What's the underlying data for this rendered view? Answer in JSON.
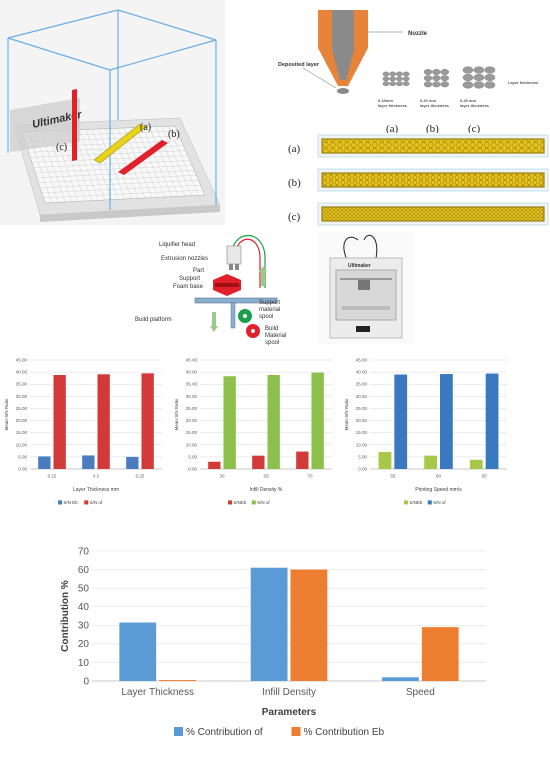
{
  "build_box": {
    "brand": "Ultimaker",
    "labels": {
      "a": "(a)",
      "b": "(b)",
      "c": "(c)"
    },
    "colors": {
      "box": "#6aaee6",
      "bed": "#d9d9d9",
      "part_red": "#e0202a",
      "part_yellow": "#e8d21a"
    }
  },
  "nozzle": {
    "nozzle_label": "Nozzle",
    "deposited_label": "Deposited layer",
    "layer_label": "Layer thickness",
    "thicknesses": [
      {
        "value": "0.15mm",
        "text": "layer thickness",
        "tag": "(a)"
      },
      {
        "value": "0.20 mm",
        "text": "layer thickness",
        "tag": "(b)"
      },
      {
        "value": "0.25 mm",
        "text": "layer thickness",
        "tag": "(c)"
      }
    ],
    "colors": {
      "nozzle": "#e8833a",
      "core": "#7a7a7a",
      "beads": "#9a9a9a"
    }
  },
  "infill_strips": {
    "labels": [
      "(a)",
      "(b)",
      "(c)"
    ],
    "colors": {
      "fill": "#e6c21c",
      "edge": "#9a8010",
      "outline": "#c8dce8"
    }
  },
  "fdm": {
    "labels": {
      "liquifier": "Liquifier head",
      "extrusion": "Extrusion nozzles",
      "part": "Part",
      "support": "Support",
      "foam": "Foam base",
      "platform": "Build platform",
      "support_spool": "Support material spool",
      "build_spool": "Build Material spool"
    },
    "colors": {
      "part": "#e0202a",
      "green_spool": "#1aa04a",
      "red_spool": "#e0202a",
      "platform": "#8ab0d0"
    }
  },
  "printer": {
    "brand": "Ultimaker"
  },
  "chart_data": [
    {
      "type": "bar",
      "categories": [
        "0.15",
        "0.2",
        "0.25"
      ],
      "series": [
        {
          "name": "S/N Eb",
          "color": "#4a7cc0",
          "values": [
            5.2,
            5.6,
            5.0
          ]
        },
        {
          "name": "S/N of",
          "color": "#d23a3a",
          "values": [
            38.8,
            39.1,
            39.5
          ]
        }
      ],
      "ylim": [
        0,
        45
      ],
      "yticks": [
        "0.00",
        "5.00",
        "10.00",
        "15.00",
        "20.00",
        "25.00",
        "30.00",
        "35.00",
        "40.00",
        "45.00"
      ],
      "xlabel": "Layer Thickness mm",
      "ylabel": "Mean S/N Ratio",
      "grid": true,
      "legend": "bottom"
    },
    {
      "type": "bar",
      "categories": [
        "30",
        "50",
        "70"
      ],
      "series": [
        {
          "name": "S/NEb",
          "color": "#d23a3a",
          "values": [
            3.0,
            5.5,
            7.2
          ]
        },
        {
          "name": "S/N of",
          "color": "#8cc04a",
          "values": [
            38.3,
            38.8,
            39.8
          ]
        }
      ],
      "ylim": [
        0,
        45
      ],
      "yticks": [
        "0.00",
        "5.00",
        "10.00",
        "15.00",
        "20.00",
        "25.00",
        "30.00",
        "35.00",
        "40.00",
        "45.00"
      ],
      "xlabel": "Infill Density %",
      "ylabel": "Mean S/N Ratio",
      "grid": true,
      "legend": "bottom"
    },
    {
      "type": "bar",
      "categories": [
        "55",
        "60",
        "65"
      ],
      "series": [
        {
          "name": "S/NEb",
          "color": "#a8c84a",
          "values": [
            7.0,
            5.5,
            3.8
          ]
        },
        {
          "name": "S/N of",
          "color": "#3a78c0",
          "values": [
            39.0,
            39.2,
            39.4
          ]
        }
      ],
      "ylim": [
        0,
        45
      ],
      "yticks": [
        "0.00",
        "5.00",
        "10.00",
        "15.00",
        "20.00",
        "25.00",
        "30.00",
        "35.00",
        "40.00",
        "45.00"
      ],
      "xlabel": "Printing Speed mm/s",
      "ylabel": "Mean S/N Ratio",
      "grid": true,
      "legend": "bottom"
    },
    {
      "type": "bar",
      "categories": [
        "Layer Thickness",
        "Infill Density",
        "Speed"
      ],
      "series": [
        {
          "name": "% Contribution of",
          "color": "#5b9bd5",
          "values": [
            31.5,
            61,
            2
          ]
        },
        {
          "name": "% Contribution Eb",
          "color": "#ed7d31",
          "values": [
            0.5,
            60,
            29
          ]
        }
      ],
      "ylim": [
        0,
        70
      ],
      "yticks": [
        "0",
        "10",
        "20",
        "30",
        "40",
        "50",
        "60",
        "70"
      ],
      "xlabel": "Parameters",
      "ylabel": "Contribution %",
      "grid": true,
      "legend": "bottom"
    }
  ]
}
